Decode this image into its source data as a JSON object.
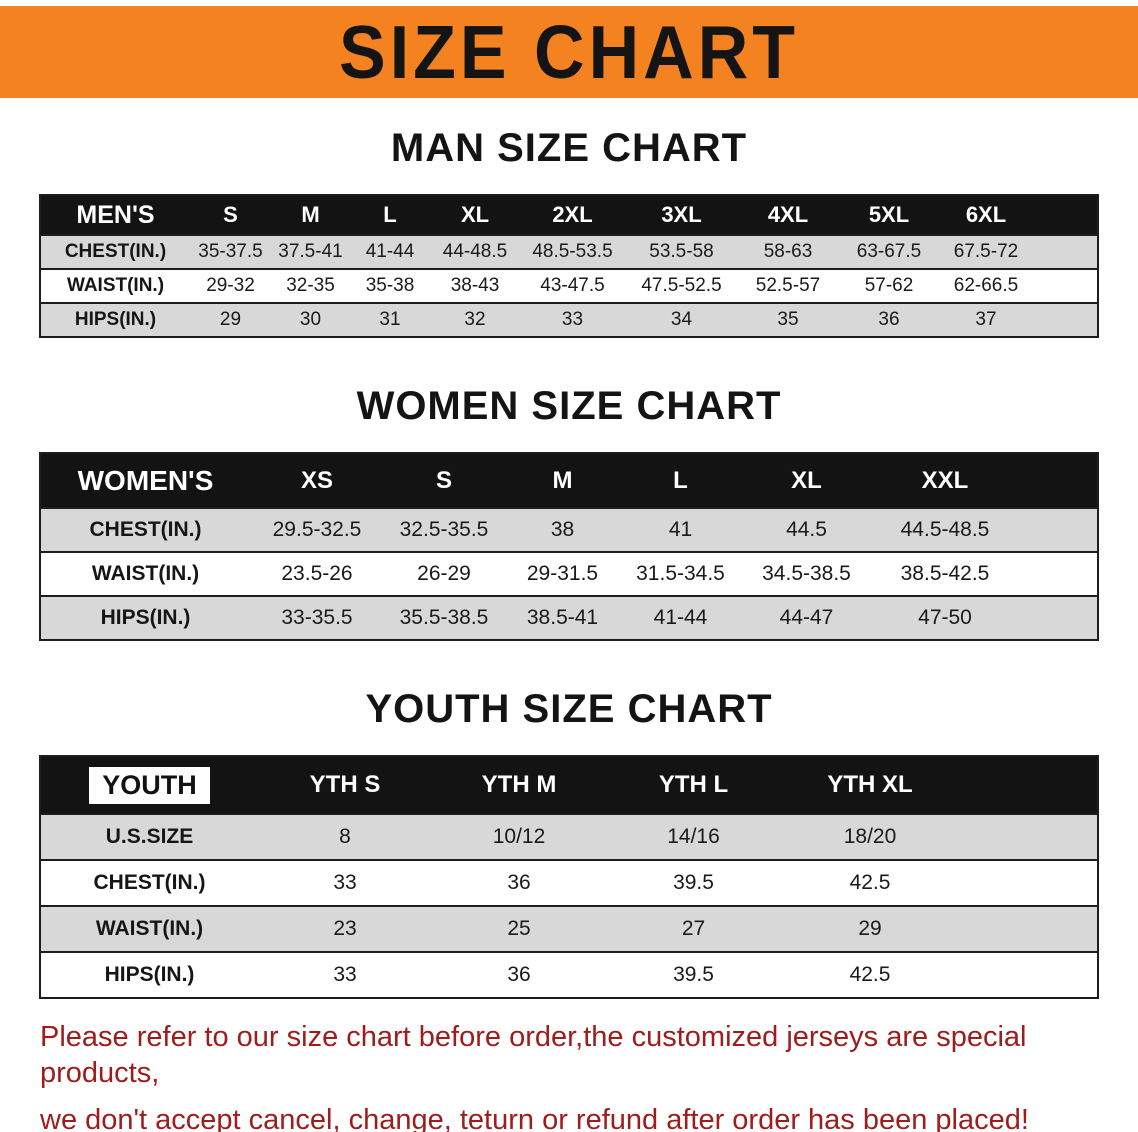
{
  "banner": {
    "title": "SIZE CHART"
  },
  "sections": [
    {
      "id": "men",
      "title": "MAN SIZE CHART",
      "header": [
        "MEN'S",
        "S",
        "M",
        "L",
        "XL",
        "2XL",
        "3XL",
        "4XL",
        "5XL",
        "6XL"
      ],
      "rows": [
        [
          "CHEST(IN.)",
          "35-37.5",
          "37.5-41",
          "41-44",
          "44-48.5",
          "48.5-53.5",
          "53.5-58",
          "58-63",
          "63-67.5",
          "67.5-72"
        ],
        [
          "WAIST(IN.)",
          "29-32",
          "32-35",
          "35-38",
          "38-43",
          "43-47.5",
          "47.5-52.5",
          "52.5-57",
          "57-62",
          "62-66.5"
        ],
        [
          "HIPS(IN.)",
          "29",
          "30",
          "31",
          "32",
          "33",
          "34",
          "35",
          "36",
          "37"
        ]
      ]
    },
    {
      "id": "women",
      "title": "WOMEN SIZE CHART",
      "header": [
        "WOMEN'S",
        "XS",
        "S",
        "M",
        "L",
        "XL",
        "XXL"
      ],
      "rows": [
        [
          "CHEST(IN.)",
          "29.5-32.5",
          "32.5-35.5",
          "38",
          "41",
          "44.5",
          "44.5-48.5"
        ],
        [
          "WAIST(IN.)",
          "23.5-26",
          "26-29",
          "29-31.5",
          "31.5-34.5",
          "34.5-38.5",
          "38.5-42.5"
        ],
        [
          "HIPS(IN.)",
          "33-35.5",
          "35.5-38.5",
          "38.5-41",
          "41-44",
          "44-47",
          "47-50"
        ]
      ]
    },
    {
      "id": "youth",
      "title": "YOUTH SIZE CHART",
      "header": [
        "YOUTH",
        "YTH S",
        "YTH M",
        "YTH L",
        "YTH XL"
      ],
      "rows": [
        [
          "U.S.SIZE",
          "8",
          "10/12",
          "14/16",
          "18/20"
        ],
        [
          "CHEST(IN.)",
          "33",
          "36",
          "39.5",
          "42.5"
        ],
        [
          "WAIST(IN.)",
          "23",
          "25",
          "27",
          "29"
        ],
        [
          "HIPS(IN.)",
          "33",
          "36",
          "39.5",
          "42.5"
        ]
      ]
    }
  ],
  "footer": {
    "line1": "Please refer to our size chart before order,the customized jerseys are special products,",
    "line2": "we don't accept cancel, change, teturn or refund after order has been placed!"
  },
  "colors": {
    "banner_bg": "#f58220",
    "header_bg": "#131313",
    "row_alt_bg": "#d8d8d8",
    "footer_text": "#9e1c1c"
  }
}
